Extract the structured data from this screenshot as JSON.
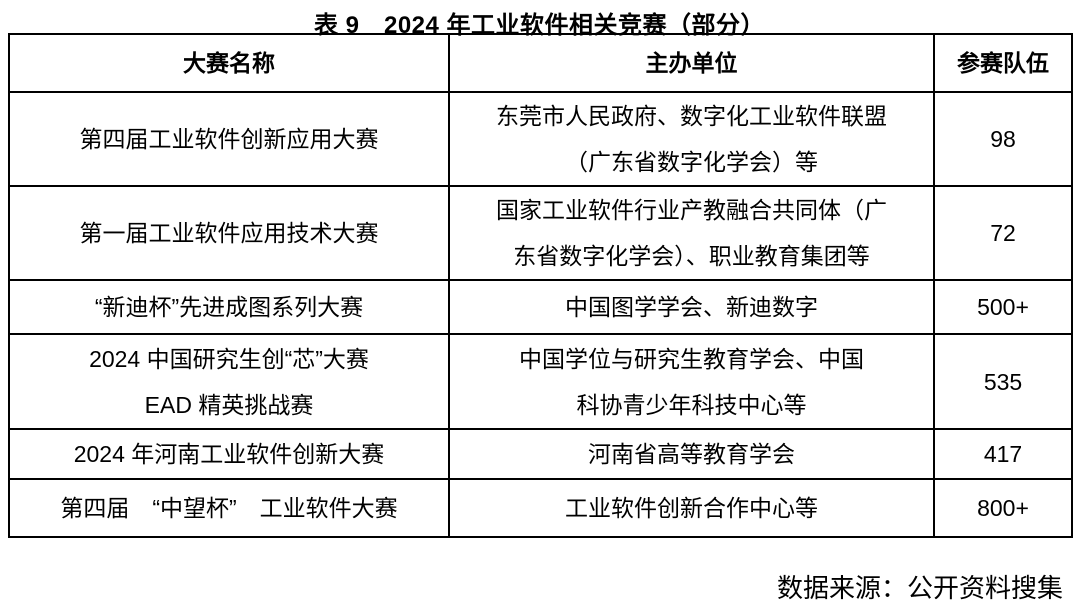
{
  "page": {
    "title": "表 9　2024 年工业软件相关竞赛（部分）",
    "source_note": "数据来源：公开资料搜集"
  },
  "table": {
    "headers": [
      "大赛名称",
      "主办单位",
      "参赛队伍"
    ],
    "rows": [
      {
        "name": "第四届工业软件创新应用大赛",
        "organizer": "东莞市人民政府、数字化工业软件联盟\n（广东省数字化学会）等",
        "teams": "98"
      },
      {
        "name": "第一届工业软件应用技术大赛",
        "organizer": "国家工业软件行业产教融合共同体（广\n东省数字化学会）、职业教育集团等",
        "teams": "72"
      },
      {
        "name": "“新迪杯”先进成图系列大赛",
        "organizer": "中国图学学会、新迪数字",
        "teams": "500+"
      },
      {
        "name": "2024 中国研究生创“芯”大赛\nEAD 精英挑战赛",
        "organizer": "中国学位与研究生教育学会、中国\n科协青少年科技中心等",
        "teams": "535"
      },
      {
        "name": "2024 年河南工业软件创新大赛",
        "organizer": "河南省高等教育学会",
        "teams": "417"
      },
      {
        "name": "第四届　“中望杯”　工业软件大赛",
        "organizer": "工业软件创新合作中心等",
        "teams": "800+"
      }
    ]
  }
}
